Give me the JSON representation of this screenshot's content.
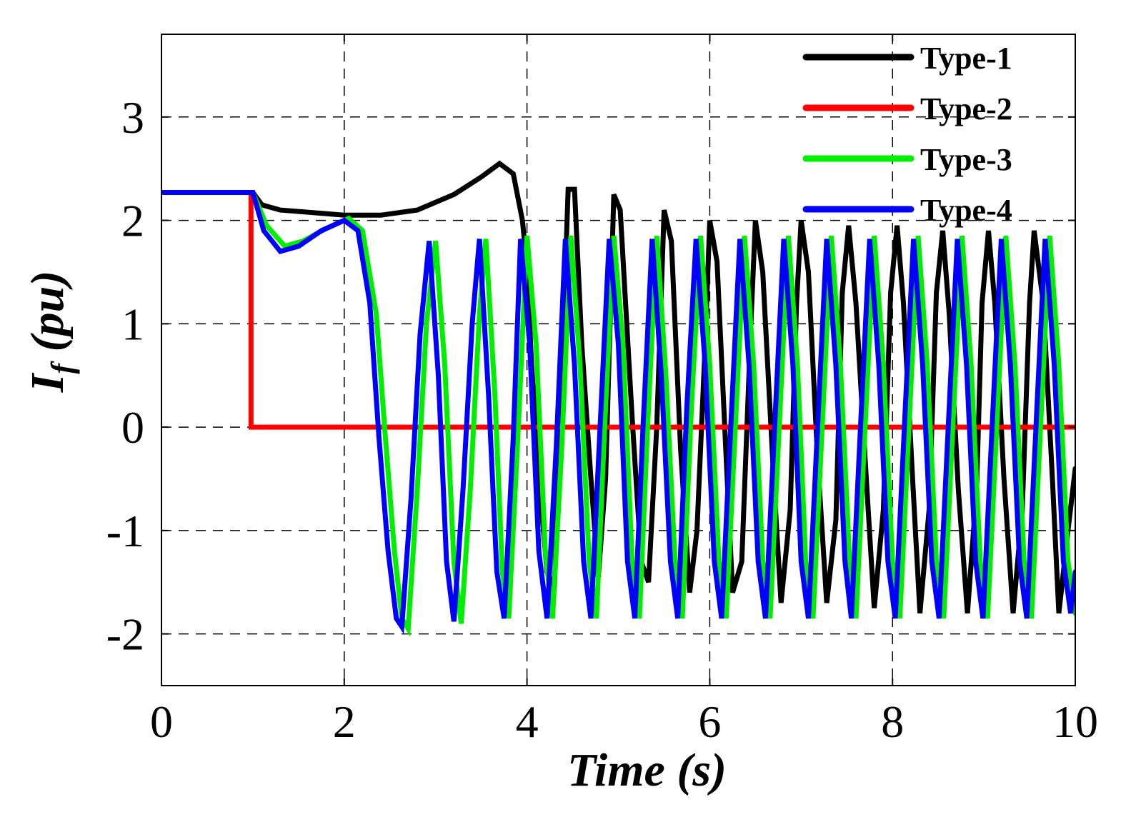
{
  "chart_data": {
    "type": "line",
    "title": "",
    "xlabel": "Time (s)",
    "ylabel": {
      "symbol": "I",
      "subscript": "f",
      "unit": " (pu)"
    },
    "xlim": [
      0,
      10
    ],
    "ylim": [
      -2.5,
      3.8
    ],
    "xticks": [
      0,
      2,
      4,
      6,
      8,
      10
    ],
    "yticks": [
      -2,
      -1,
      0,
      1,
      2,
      3
    ],
    "xtick_labels": [
      "0",
      "2",
      "4",
      "6",
      "8",
      "10"
    ],
    "ytick_labels": [
      "-2",
      "-1",
      "0",
      "1",
      "2",
      "3"
    ],
    "grid": true,
    "legend_position": "top-right",
    "series": [
      {
        "name": "Type-1",
        "color": "#000000",
        "points": [
          [
            0,
            2.27
          ],
          [
            0.5,
            2.27
          ],
          [
            1.0,
            2.27
          ],
          [
            1.1,
            2.15
          ],
          [
            1.3,
            2.1
          ],
          [
            2.0,
            2.05
          ],
          [
            2.4,
            2.05
          ],
          [
            2.8,
            2.1
          ],
          [
            3.2,
            2.25
          ],
          [
            3.5,
            2.42
          ],
          [
            3.7,
            2.55
          ],
          [
            3.85,
            2.45
          ],
          [
            3.95,
            2.0
          ],
          [
            4.0,
            1.55
          ],
          [
            4.05,
            0.6
          ],
          [
            4.15,
            -0.7
          ],
          [
            4.22,
            -1.4
          ],
          [
            4.3,
            -1.55
          ],
          [
            4.38,
            0.5
          ],
          [
            4.45,
            2.3
          ],
          [
            4.52,
            2.3
          ],
          [
            4.6,
            0.8
          ],
          [
            4.7,
            -0.5
          ],
          [
            4.78,
            -1.45
          ],
          [
            4.86,
            -0.5
          ],
          [
            4.95,
            2.25
          ],
          [
            5.02,
            2.1
          ],
          [
            5.15,
            0.1
          ],
          [
            5.25,
            -1.3
          ],
          [
            5.33,
            -1.5
          ],
          [
            5.42,
            0.0
          ],
          [
            5.5,
            2.1
          ],
          [
            5.58,
            1.8
          ],
          [
            5.68,
            -0.2
          ],
          [
            5.78,
            -1.6
          ],
          [
            5.86,
            -1.0
          ],
          [
            5.95,
            0.8
          ],
          [
            6.0,
            2.0
          ],
          [
            6.08,
            1.6
          ],
          [
            6.18,
            -0.3
          ],
          [
            6.25,
            -1.6
          ],
          [
            6.35,
            -1.3
          ],
          [
            6.45,
            1.0
          ],
          [
            6.5,
            2.0
          ],
          [
            6.58,
            1.5
          ],
          [
            6.7,
            -0.5
          ],
          [
            6.78,
            -1.7
          ],
          [
            6.88,
            -0.8
          ],
          [
            6.95,
            1.2
          ],
          [
            7.0,
            2.0
          ],
          [
            7.08,
            1.5
          ],
          [
            7.18,
            -0.3
          ],
          [
            7.28,
            -1.7
          ],
          [
            7.38,
            -0.9
          ],
          [
            7.45,
            1.3
          ],
          [
            7.52,
            1.95
          ],
          [
            7.6,
            1.2
          ],
          [
            7.72,
            -0.6
          ],
          [
            7.8,
            -1.75
          ],
          [
            7.9,
            -0.8
          ],
          [
            7.98,
            1.3
          ],
          [
            8.05,
            1.95
          ],
          [
            8.12,
            1.2
          ],
          [
            8.22,
            -0.5
          ],
          [
            8.3,
            -1.8
          ],
          [
            8.4,
            -0.8
          ],
          [
            8.48,
            1.3
          ],
          [
            8.55,
            1.9
          ],
          [
            8.62,
            1.1
          ],
          [
            8.72,
            -0.6
          ],
          [
            8.82,
            -1.8
          ],
          [
            8.92,
            -0.6
          ],
          [
            8.98,
            1.2
          ],
          [
            9.05,
            1.9
          ],
          [
            9.12,
            1.2
          ],
          [
            9.22,
            -0.5
          ],
          [
            9.32,
            -1.8
          ],
          [
            9.42,
            -0.8
          ],
          [
            9.5,
            1.2
          ],
          [
            9.55,
            1.9
          ],
          [
            9.65,
            1.2
          ],
          [
            9.75,
            -0.5
          ],
          [
            9.82,
            -1.8
          ],
          [
            9.92,
            -1.0
          ],
          [
            10.0,
            -0.4
          ]
        ]
      },
      {
        "name": "Type-2",
        "color": "#ff0000",
        "points": [
          [
            0,
            2.27
          ],
          [
            0.98,
            2.27
          ],
          [
            0.98,
            0.0
          ],
          [
            10.0,
            0.0
          ]
        ]
      },
      {
        "name": "Type-3",
        "color": "#00ee00",
        "points": [
          [
            0,
            2.27
          ],
          [
            0.5,
            2.27
          ],
          [
            1.0,
            2.27
          ],
          [
            1.15,
            1.95
          ],
          [
            1.35,
            1.75
          ],
          [
            1.55,
            1.8
          ],
          [
            1.8,
            1.92
          ],
          [
            2.05,
            2.02
          ],
          [
            2.2,
            1.9
          ],
          [
            2.35,
            1.1
          ],
          [
            2.45,
            -0.1
          ],
          [
            2.55,
            -1.2
          ],
          [
            2.63,
            -1.85
          ],
          [
            2.7,
            -1.95
          ],
          [
            2.8,
            -0.6
          ],
          [
            2.9,
            1.0
          ],
          [
            3.0,
            1.8
          ],
          [
            3.1,
            0.6
          ],
          [
            3.2,
            -1.3
          ],
          [
            3.28,
            -1.9
          ],
          [
            3.38,
            -0.6
          ],
          [
            3.48,
            1.1
          ],
          [
            3.55,
            1.82
          ],
          [
            3.65,
            0.3
          ],
          [
            3.73,
            -1.4
          ],
          [
            3.8,
            -1.85
          ],
          [
            3.9,
            -0.1
          ],
          [
            4.0,
            1.85
          ],
          [
            4.1,
            0.8
          ],
          [
            4.2,
            -1.2
          ],
          [
            4.28,
            -1.85
          ],
          [
            4.38,
            -0.2
          ],
          [
            4.48,
            1.85
          ],
          [
            4.58,
            0.6
          ],
          [
            4.68,
            -1.3
          ],
          [
            4.76,
            -1.85
          ],
          [
            4.85,
            0.0
          ],
          [
            4.95,
            1.85
          ],
          [
            5.05,
            0.8
          ],
          [
            5.15,
            -1.3
          ],
          [
            5.23,
            -1.85
          ],
          [
            5.32,
            0.0
          ],
          [
            5.42,
            1.85
          ],
          [
            5.52,
            0.5
          ],
          [
            5.62,
            -1.3
          ],
          [
            5.7,
            -1.85
          ],
          [
            5.8,
            0.2
          ],
          [
            5.9,
            1.85
          ],
          [
            6.0,
            0.6
          ],
          [
            6.1,
            -1.3
          ],
          [
            6.18,
            -1.85
          ],
          [
            6.28,
            0.0
          ],
          [
            6.38,
            1.85
          ],
          [
            6.48,
            0.6
          ],
          [
            6.58,
            -1.3
          ],
          [
            6.66,
            -1.85
          ],
          [
            6.76,
            0.0
          ],
          [
            6.86,
            1.85
          ],
          [
            6.96,
            0.6
          ],
          [
            7.05,
            -1.3
          ],
          [
            7.13,
            -1.85
          ],
          [
            7.23,
            0.0
          ],
          [
            7.33,
            1.85
          ],
          [
            7.43,
            0.6
          ],
          [
            7.53,
            -1.3
          ],
          [
            7.6,
            -1.85
          ],
          [
            7.7,
            0.0
          ],
          [
            7.8,
            1.85
          ],
          [
            7.9,
            0.6
          ],
          [
            8.0,
            -1.3
          ],
          [
            8.08,
            -1.85
          ],
          [
            8.18,
            0.0
          ],
          [
            8.28,
            1.85
          ],
          [
            8.38,
            0.6
          ],
          [
            8.48,
            -1.3
          ],
          [
            8.56,
            -1.85
          ],
          [
            8.66,
            0.0
          ],
          [
            8.76,
            1.85
          ],
          [
            8.86,
            0.6
          ],
          [
            8.96,
            -1.3
          ],
          [
            9.04,
            -1.85
          ],
          [
            9.14,
            0.0
          ],
          [
            9.24,
            1.85
          ],
          [
            9.34,
            0.6
          ],
          [
            9.44,
            -1.3
          ],
          [
            9.52,
            -1.85
          ],
          [
            9.62,
            0.0
          ],
          [
            9.72,
            1.85
          ],
          [
            9.82,
            0.6
          ],
          [
            9.92,
            -1.3
          ],
          [
            10.0,
            -1.8
          ]
        ]
      },
      {
        "name": "Type-4",
        "color": "#0000ff",
        "points": [
          [
            0,
            2.27
          ],
          [
            0.5,
            2.27
          ],
          [
            1.0,
            2.27
          ],
          [
            1.12,
            1.9
          ],
          [
            1.3,
            1.7
          ],
          [
            1.5,
            1.75
          ],
          [
            1.75,
            1.9
          ],
          [
            2.0,
            2.0
          ],
          [
            2.15,
            1.9
          ],
          [
            2.28,
            1.2
          ],
          [
            2.38,
            -0.1
          ],
          [
            2.48,
            -1.2
          ],
          [
            2.57,
            -1.85
          ],
          [
            2.63,
            -1.93
          ],
          [
            2.73,
            -0.7
          ],
          [
            2.83,
            0.9
          ],
          [
            2.93,
            1.8
          ],
          [
            3.03,
            0.5
          ],
          [
            3.12,
            -1.3
          ],
          [
            3.2,
            -1.88
          ],
          [
            3.3,
            -0.6
          ],
          [
            3.4,
            1.0
          ],
          [
            3.48,
            1.82
          ],
          [
            3.58,
            0.3
          ],
          [
            3.67,
            -1.4
          ],
          [
            3.75,
            -1.85
          ],
          [
            3.85,
            -0.1
          ],
          [
            3.93,
            1.82
          ],
          [
            4.03,
            0.8
          ],
          [
            4.13,
            -1.2
          ],
          [
            4.22,
            -1.85
          ],
          [
            4.32,
            -0.2
          ],
          [
            4.42,
            1.82
          ],
          [
            4.52,
            0.6
          ],
          [
            4.62,
            -1.3
          ],
          [
            4.7,
            -1.85
          ],
          [
            4.8,
            0.0
          ],
          [
            4.9,
            1.82
          ],
          [
            5.0,
            0.8
          ],
          [
            5.1,
            -1.3
          ],
          [
            5.18,
            -1.85
          ],
          [
            5.27,
            0.0
          ],
          [
            5.37,
            1.82
          ],
          [
            5.47,
            0.5
          ],
          [
            5.57,
            -1.3
          ],
          [
            5.65,
            -1.85
          ],
          [
            5.75,
            0.2
          ],
          [
            5.85,
            1.82
          ],
          [
            5.95,
            0.6
          ],
          [
            6.05,
            -1.3
          ],
          [
            6.13,
            -1.85
          ],
          [
            6.23,
            0.0
          ],
          [
            6.33,
            1.82
          ],
          [
            6.43,
            0.6
          ],
          [
            6.53,
            -1.3
          ],
          [
            6.61,
            -1.85
          ],
          [
            6.71,
            0.0
          ],
          [
            6.81,
            1.82
          ],
          [
            6.91,
            0.6
          ],
          [
            7.0,
            -1.3
          ],
          [
            7.08,
            -1.85
          ],
          [
            7.18,
            0.0
          ],
          [
            7.28,
            1.82
          ],
          [
            7.38,
            0.6
          ],
          [
            7.48,
            -1.3
          ],
          [
            7.55,
            -1.85
          ],
          [
            7.65,
            0.0
          ],
          [
            7.75,
            1.82
          ],
          [
            7.85,
            0.6
          ],
          [
            7.95,
            -1.3
          ],
          [
            8.03,
            -1.85
          ],
          [
            8.13,
            0.0
          ],
          [
            8.23,
            1.82
          ],
          [
            8.33,
            0.6
          ],
          [
            8.43,
            -1.3
          ],
          [
            8.51,
            -1.85
          ],
          [
            8.61,
            0.0
          ],
          [
            8.71,
            1.82
          ],
          [
            8.81,
            0.6
          ],
          [
            8.91,
            -1.3
          ],
          [
            8.99,
            -1.85
          ],
          [
            9.09,
            0.0
          ],
          [
            9.19,
            1.82
          ],
          [
            9.29,
            0.6
          ],
          [
            9.39,
            -1.3
          ],
          [
            9.47,
            -1.85
          ],
          [
            9.57,
            0.0
          ],
          [
            9.67,
            1.82
          ],
          [
            9.77,
            0.6
          ],
          [
            9.87,
            -1.3
          ],
          [
            9.95,
            -1.8
          ],
          [
            10.0,
            -1.4
          ]
        ]
      }
    ]
  }
}
